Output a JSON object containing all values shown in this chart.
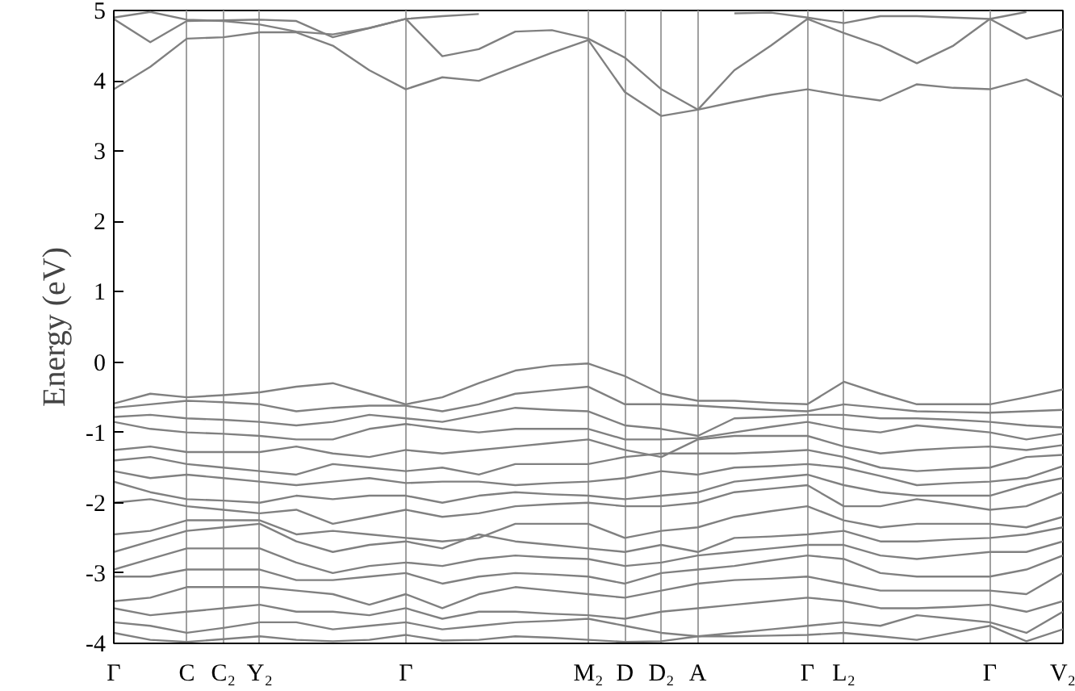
{
  "chart_data": {
    "type": "line",
    "ylabel": "Energy (eV)",
    "categories": [
      "Γ",
      null,
      "C",
      "C₂",
      "Y₂",
      null,
      null,
      null,
      "Γ",
      null,
      null,
      null,
      null,
      "M₂",
      "D",
      "D₂",
      "A",
      null,
      null,
      "Γ",
      "L₂",
      null,
      null,
      null,
      "Γ",
      null,
      "V₂"
    ],
    "ylim": [
      -4,
      5
    ],
    "yticks": [
      -4,
      -3,
      -2,
      -1,
      0,
      1,
      2,
      3,
      4,
      5
    ],
    "grid": "x",
    "line_style": "solid",
    "series": [
      {
        "color": "#808080",
        "values": [
          3.88,
          4.2,
          4.6,
          4.62,
          4.69,
          4.69,
          4.5,
          4.15,
          3.88,
          4.05,
          4.0,
          4.2,
          4.4,
          4.58,
          3.84,
          3.5,
          3.59,
          3.7,
          3.8,
          3.88,
          3.79,
          3.72,
          3.95,
          3.9,
          3.88,
          4.02,
          3.77
        ]
      },
      {
        "color": "#808080",
        "values": [
          4.88,
          4.55,
          4.85,
          4.86,
          4.87,
          4.85,
          4.62,
          4.75,
          4.88,
          4.35,
          4.45,
          4.7,
          4.72,
          4.6,
          4.33,
          3.88,
          3.59,
          4.15,
          4.5,
          4.88,
          4.68,
          4.5,
          4.25,
          4.5,
          4.88,
          4.6,
          4.73
        ]
      },
      {
        "color": "#808080",
        "values": [
          4.9,
          4.98,
          4.87,
          4.85,
          4.8,
          4.7,
          4.66,
          4.75,
          4.88,
          4.92,
          4.95,
          null,
          null,
          null,
          null,
          null,
          null,
          4.96,
          4.97,
          4.9,
          4.82,
          4.92,
          4.92,
          4.9,
          4.88,
          4.98,
          null
        ]
      },
      {
        "color": "#808080",
        "values": [
          -0.59,
          -0.45,
          -0.5,
          -0.47,
          -0.43,
          -0.35,
          -0.3,
          -0.45,
          -0.6,
          -0.5,
          -0.3,
          -0.12,
          -0.05,
          -0.02,
          -0.2,
          -0.45,
          -0.55,
          -0.55,
          -0.58,
          -0.6,
          -0.28,
          -0.45,
          -0.6,
          -0.6,
          -0.6,
          -0.5,
          -0.39
        ]
      },
      {
        "color": "#808080",
        "values": [
          -0.65,
          -0.6,
          -0.55,
          -0.57,
          -0.6,
          -0.7,
          -0.65,
          -0.62,
          -0.62,
          -0.7,
          -0.6,
          -0.45,
          -0.4,
          -0.35,
          -0.6,
          -0.6,
          -0.62,
          -0.65,
          -0.68,
          -0.7,
          -0.6,
          -0.65,
          -0.7,
          -0.71,
          -0.72,
          -0.7,
          -0.68
        ]
      },
      {
        "color": "#808080",
        "values": [
          -0.78,
          -0.75,
          -0.8,
          -0.82,
          -0.85,
          -0.9,
          -0.85,
          -0.75,
          -0.8,
          -0.85,
          -0.75,
          -0.65,
          -0.68,
          -0.7,
          -0.9,
          -0.95,
          -1.05,
          -0.8,
          -0.78,
          -0.75,
          -0.75,
          -0.8,
          -0.8,
          -0.82,
          -0.85,
          -0.9,
          -0.93
        ]
      },
      {
        "color": "#808080",
        "values": [
          -0.85,
          -0.95,
          -1.0,
          -1.02,
          -1.05,
          -1.1,
          -1.1,
          -0.95,
          -0.88,
          -0.95,
          -1.0,
          -0.95,
          -0.95,
          -0.95,
          -1.1,
          -1.1,
          -1.08,
          -1.0,
          -0.92,
          -0.85,
          -0.95,
          -1.0,
          -0.9,
          -0.95,
          -1.0,
          -1.1,
          -1.02
        ]
      },
      {
        "color": "#808080",
        "values": [
          -1.25,
          -1.2,
          -1.28,
          -1.28,
          -1.28,
          -1.2,
          -1.3,
          -1.35,
          -1.25,
          -1.3,
          -1.25,
          -1.2,
          -1.15,
          -1.1,
          -1.25,
          -1.35,
          -1.1,
          -1.05,
          -1.05,
          -1.05,
          -1.2,
          -1.3,
          -1.25,
          -1.22,
          -1.2,
          -1.25,
          -1.18
        ]
      },
      {
        "color": "#808080",
        "values": [
          -1.4,
          -1.35,
          -1.45,
          -1.5,
          -1.55,
          -1.6,
          -1.45,
          -1.5,
          -1.55,
          -1.5,
          -1.6,
          -1.45,
          -1.45,
          -1.45,
          -1.35,
          -1.3,
          -1.3,
          -1.3,
          -1.28,
          -1.25,
          -1.35,
          -1.5,
          -1.55,
          -1.52,
          -1.5,
          -1.35,
          -1.32
        ]
      },
      {
        "color": "#808080",
        "values": [
          -1.55,
          -1.65,
          -1.6,
          -1.65,
          -1.7,
          -1.75,
          -1.7,
          -1.65,
          -1.72,
          -1.7,
          -1.7,
          -1.75,
          -1.72,
          -1.7,
          -1.65,
          -1.55,
          -1.6,
          -1.5,
          -1.48,
          -1.45,
          -1.5,
          -1.62,
          -1.75,
          -1.72,
          -1.7,
          -1.65,
          -1.48
        ]
      },
      {
        "color": "#808080",
        "values": [
          -1.7,
          -1.85,
          -1.95,
          -1.97,
          -2.0,
          -1.9,
          -1.95,
          -1.9,
          -1.9,
          -2.0,
          -1.9,
          -1.85,
          -1.88,
          -1.9,
          -1.95,
          -1.9,
          -1.85,
          -1.7,
          -1.65,
          -1.6,
          -1.75,
          -1.85,
          -1.9,
          -1.9,
          -1.9,
          -1.75,
          -1.65
        ]
      },
      {
        "color": "#808080",
        "values": [
          -2.0,
          -1.95,
          -2.05,
          -2.1,
          -2.15,
          -2.1,
          -2.3,
          -2.2,
          -2.1,
          -2.2,
          -2.15,
          -2.05,
          -2.02,
          -2.0,
          -2.05,
          -2.05,
          -2.0,
          -1.85,
          -1.8,
          -1.75,
          -2.05,
          -2.05,
          -1.95,
          -2.02,
          -2.1,
          -2.05,
          -1.85
        ]
      },
      {
        "color": "#808080",
        "values": [
          -2.45,
          -2.4,
          -2.25,
          -2.25,
          -2.25,
          -2.45,
          -2.4,
          -2.45,
          -2.5,
          -2.55,
          -2.5,
          -2.3,
          -2.3,
          -2.3,
          -2.5,
          -2.4,
          -2.35,
          -2.2,
          -2.12,
          -2.05,
          -2.25,
          -2.35,
          -2.3,
          -2.3,
          -2.3,
          -2.35,
          -2.2
        ]
      },
      {
        "color": "#808080",
        "values": [
          -2.7,
          -2.55,
          -2.4,
          -2.35,
          -2.3,
          -2.55,
          -2.7,
          -2.6,
          -2.55,
          -2.65,
          -2.45,
          -2.55,
          -2.6,
          -2.65,
          -2.7,
          -2.6,
          -2.7,
          -2.5,
          -2.48,
          -2.45,
          -2.4,
          -2.55,
          -2.55,
          -2.52,
          -2.5,
          -2.45,
          -2.35
        ]
      },
      {
        "color": "#808080",
        "values": [
          -2.95,
          -2.8,
          -2.65,
          -2.65,
          -2.65,
          -2.85,
          -3.0,
          -2.9,
          -2.85,
          -2.9,
          -2.8,
          -2.75,
          -2.78,
          -2.8,
          -2.9,
          -2.85,
          -2.75,
          -2.7,
          -2.65,
          -2.6,
          -2.6,
          -2.75,
          -2.8,
          -2.75,
          -2.7,
          -2.7,
          -2.55
        ]
      },
      {
        "color": "#808080",
        "values": [
          -3.05,
          -3.05,
          -2.95,
          -2.95,
          -2.95,
          -3.1,
          -3.1,
          -3.05,
          -3.0,
          -3.15,
          -3.05,
          -3.0,
          -3.02,
          -3.05,
          -3.15,
          -3.0,
          -2.95,
          -2.9,
          -2.82,
          -2.75,
          -2.8,
          -3.0,
          -3.05,
          -3.05,
          -3.05,
          -2.95,
          -2.75
        ]
      },
      {
        "color": "#808080",
        "values": [
          -3.4,
          -3.35,
          -3.2,
          -3.2,
          -3.2,
          -3.25,
          -3.3,
          -3.45,
          -3.3,
          -3.5,
          -3.3,
          -3.2,
          -3.25,
          -3.3,
          -3.35,
          -3.25,
          -3.15,
          -3.1,
          -3.08,
          -3.05,
          -3.15,
          -3.25,
          -3.25,
          -3.25,
          -3.25,
          -3.3,
          -3.0
        ]
      },
      {
        "color": "#808080",
        "values": [
          -3.5,
          -3.6,
          -3.55,
          -3.5,
          -3.45,
          -3.55,
          -3.55,
          -3.6,
          -3.5,
          -3.65,
          -3.55,
          -3.55,
          -3.58,
          -3.6,
          -3.65,
          -3.55,
          -3.5,
          -3.45,
          -3.4,
          -3.35,
          -3.4,
          -3.5,
          -3.5,
          -3.48,
          -3.45,
          -3.55,
          -3.4
        ]
      },
      {
        "color": "#808080",
        "values": [
          -3.7,
          -3.75,
          -3.85,
          -3.78,
          -3.7,
          -3.7,
          -3.8,
          -3.75,
          -3.7,
          -3.8,
          -3.75,
          -3.7,
          -3.68,
          -3.65,
          -3.75,
          -3.85,
          -3.9,
          -3.85,
          -3.8,
          -3.75,
          -3.7,
          -3.75,
          -3.6,
          -3.65,
          -3.7,
          -3.85,
          -3.55
        ]
      },
      {
        "color": "#808080",
        "values": [
          -3.85,
          -3.95,
          -3.98,
          -3.94,
          -3.9,
          -3.95,
          -3.97,
          -3.95,
          -3.88,
          -3.96,
          -3.95,
          -3.9,
          -3.92,
          -3.95,
          -3.98,
          -3.97,
          -3.9,
          -3.9,
          -3.89,
          -3.88,
          -3.85,
          -3.9,
          -3.95,
          -3.85,
          -3.75,
          -3.97,
          -3.8
        ]
      }
    ]
  }
}
